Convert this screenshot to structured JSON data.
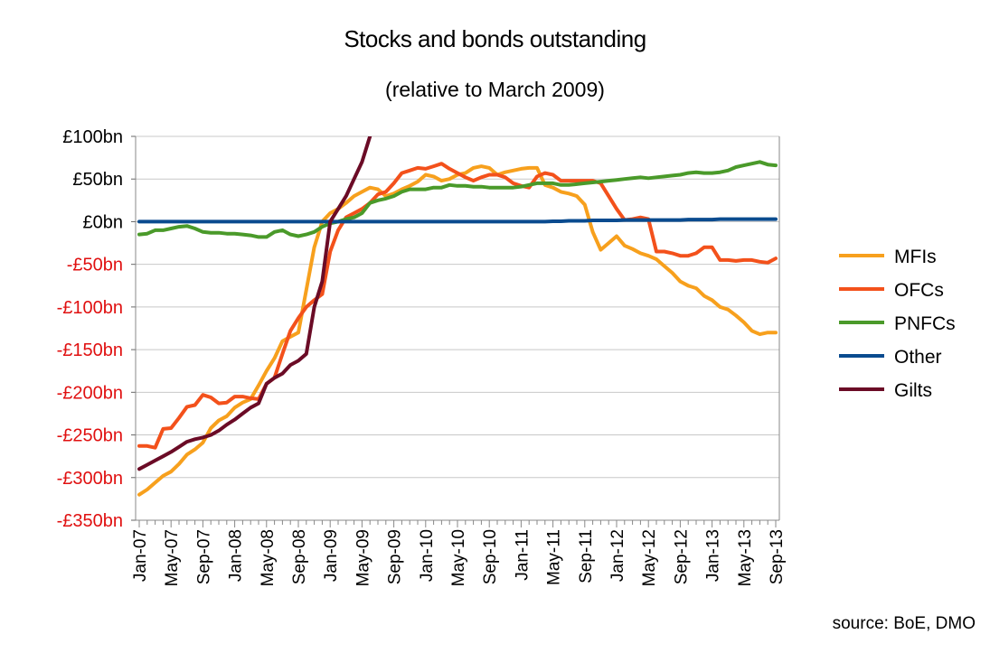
{
  "colors": {
    "MFIs": "#f7a01d",
    "OFCs": "#f3511b",
    "PNFCs": "#4a9a2a",
    "Other": "#0a4b8f",
    "Gilts": "#6b0b26",
    "negative_tick": "#e01010",
    "grid": "#c8c8c8"
  },
  "chart_data": {
    "type": "line",
    "title": "Stocks and bonds outstanding",
    "subtitle": "(relative to March 2009)",
    "source": "source: BoE, DMO",
    "ylim": [
      -350,
      100
    ],
    "yticks": [
      100,
      50,
      0,
      -50,
      -100,
      -150,
      -200,
      -250,
      -300,
      -350
    ],
    "ytick_labels": [
      "£100bn",
      "£50bn",
      "£0bn",
      "-£50bn",
      "-£100bn",
      "-£150bn",
      "-£200bn",
      "-£250bn",
      "-£300bn",
      "-£350bn"
    ],
    "x_start": "Jan-07",
    "n_months": 81,
    "xtick_labels": [
      "Jan-07",
      "May-07",
      "Sep-07",
      "Jan-08",
      "May-08",
      "Sep-08",
      "Jan-09",
      "May-09",
      "Sep-09",
      "Jan-10",
      "May-10",
      "Sep-10",
      "Jan-11",
      "May-11",
      "Sep-11",
      "Jan-12",
      "May-12",
      "Sep-12",
      "Jan-13",
      "May-13",
      "Sep-13"
    ],
    "legend_position": "right",
    "series": [
      {
        "name": "MFIs",
        "values": [
          -320,
          -314,
          -306,
          -298,
          -293,
          -284,
          -273,
          -267,
          -259,
          -242,
          -233,
          -228,
          -218,
          -212,
          -208,
          -192,
          -175,
          -160,
          -140,
          -135,
          -130,
          -80,
          -30,
          0,
          10,
          15,
          22,
          30,
          35,
          40,
          38,
          30,
          33,
          38,
          42,
          47,
          55,
          53,
          48,
          50,
          55,
          57,
          63,
          65,
          63,
          55,
          58,
          60,
          62,
          63,
          63,
          43,
          40,
          35,
          33,
          30,
          20,
          -12,
          -33,
          -25,
          -17,
          -28,
          -32,
          -37,
          -40,
          -44,
          -52,
          -60,
          -70,
          -75,
          -78,
          -87,
          -92,
          -100,
          -103,
          -110,
          -118,
          -128,
          -132,
          -130,
          -130
        ]
      },
      {
        "name": "OFCs",
        "values": [
          -263,
          -263,
          -265,
          -243,
          -242,
          -230,
          -217,
          -215,
          -203,
          -206,
          -213,
          -212,
          -205,
          -205,
          -207,
          -208,
          -190,
          -183,
          -155,
          -128,
          -113,
          -100,
          -92,
          -85,
          -35,
          -10,
          5,
          10,
          15,
          22,
          32,
          35,
          45,
          57,
          60,
          63,
          62,
          65,
          68,
          62,
          57,
          52,
          48,
          52,
          55,
          55,
          52,
          45,
          42,
          40,
          53,
          57,
          55,
          48,
          48,
          48,
          48,
          48,
          45,
          30,
          15,
          2,
          3,
          5,
          3,
          -35,
          -35,
          -37,
          -40,
          -40,
          -37,
          -30,
          -30,
          -45,
          -45,
          -46,
          -45,
          -45,
          -47,
          -48,
          -43
        ]
      },
      {
        "name": "PNFCs",
        "values": [
          -15,
          -14,
          -10,
          -10,
          -8,
          -6,
          -5,
          -8,
          -12,
          -13,
          -13,
          -14,
          -14,
          -15,
          -16,
          -18,
          -18,
          -12,
          -10,
          -15,
          -17,
          -15,
          -12,
          -6,
          -2,
          0,
          3,
          5,
          10,
          22,
          25,
          27,
          30,
          35,
          38,
          38,
          38,
          40,
          40,
          43,
          42,
          42,
          41,
          41,
          40,
          40,
          40,
          40,
          41,
          43,
          45,
          45,
          45,
          43,
          43,
          44,
          45,
          46,
          47,
          48,
          49,
          50,
          51,
          52,
          51,
          52,
          53,
          54,
          55,
          57,
          58,
          57,
          57,
          58,
          60,
          64,
          66,
          68,
          70,
          67,
          66
        ]
      },
      {
        "name": "Other",
        "values": [
          0,
          0,
          0,
          0,
          0,
          0,
          0,
          0,
          0,
          0,
          0,
          0,
          0,
          0,
          0,
          0,
          0,
          0,
          0,
          0,
          0,
          0,
          0,
          0,
          0,
          0,
          0,
          0,
          0,
          0,
          0,
          0,
          0,
          0,
          0,
          0,
          0,
          0,
          0,
          0,
          0,
          0,
          0,
          0,
          0,
          0,
          0,
          0,
          0,
          0,
          0,
          0,
          0.5,
          0.5,
          1,
          1,
          1,
          1.5,
          1.5,
          1.5,
          1.5,
          2,
          2,
          2,
          2,
          2,
          2,
          2,
          2,
          2.5,
          2.5,
          2.5,
          2.5,
          3,
          3,
          3,
          3,
          3,
          3,
          3,
          3
        ]
      },
      {
        "name": "Gilts",
        "values": [
          -290,
          -285,
          -280,
          -275,
          -270,
          -264,
          -258,
          -255,
          -253,
          -250,
          -245,
          -238,
          -232,
          -225,
          -218,
          -213,
          -190,
          -183,
          -178,
          -168,
          -163,
          -155,
          -100,
          -70,
          0,
          15,
          30,
          50,
          70,
          100
        ]
      }
    ]
  }
}
